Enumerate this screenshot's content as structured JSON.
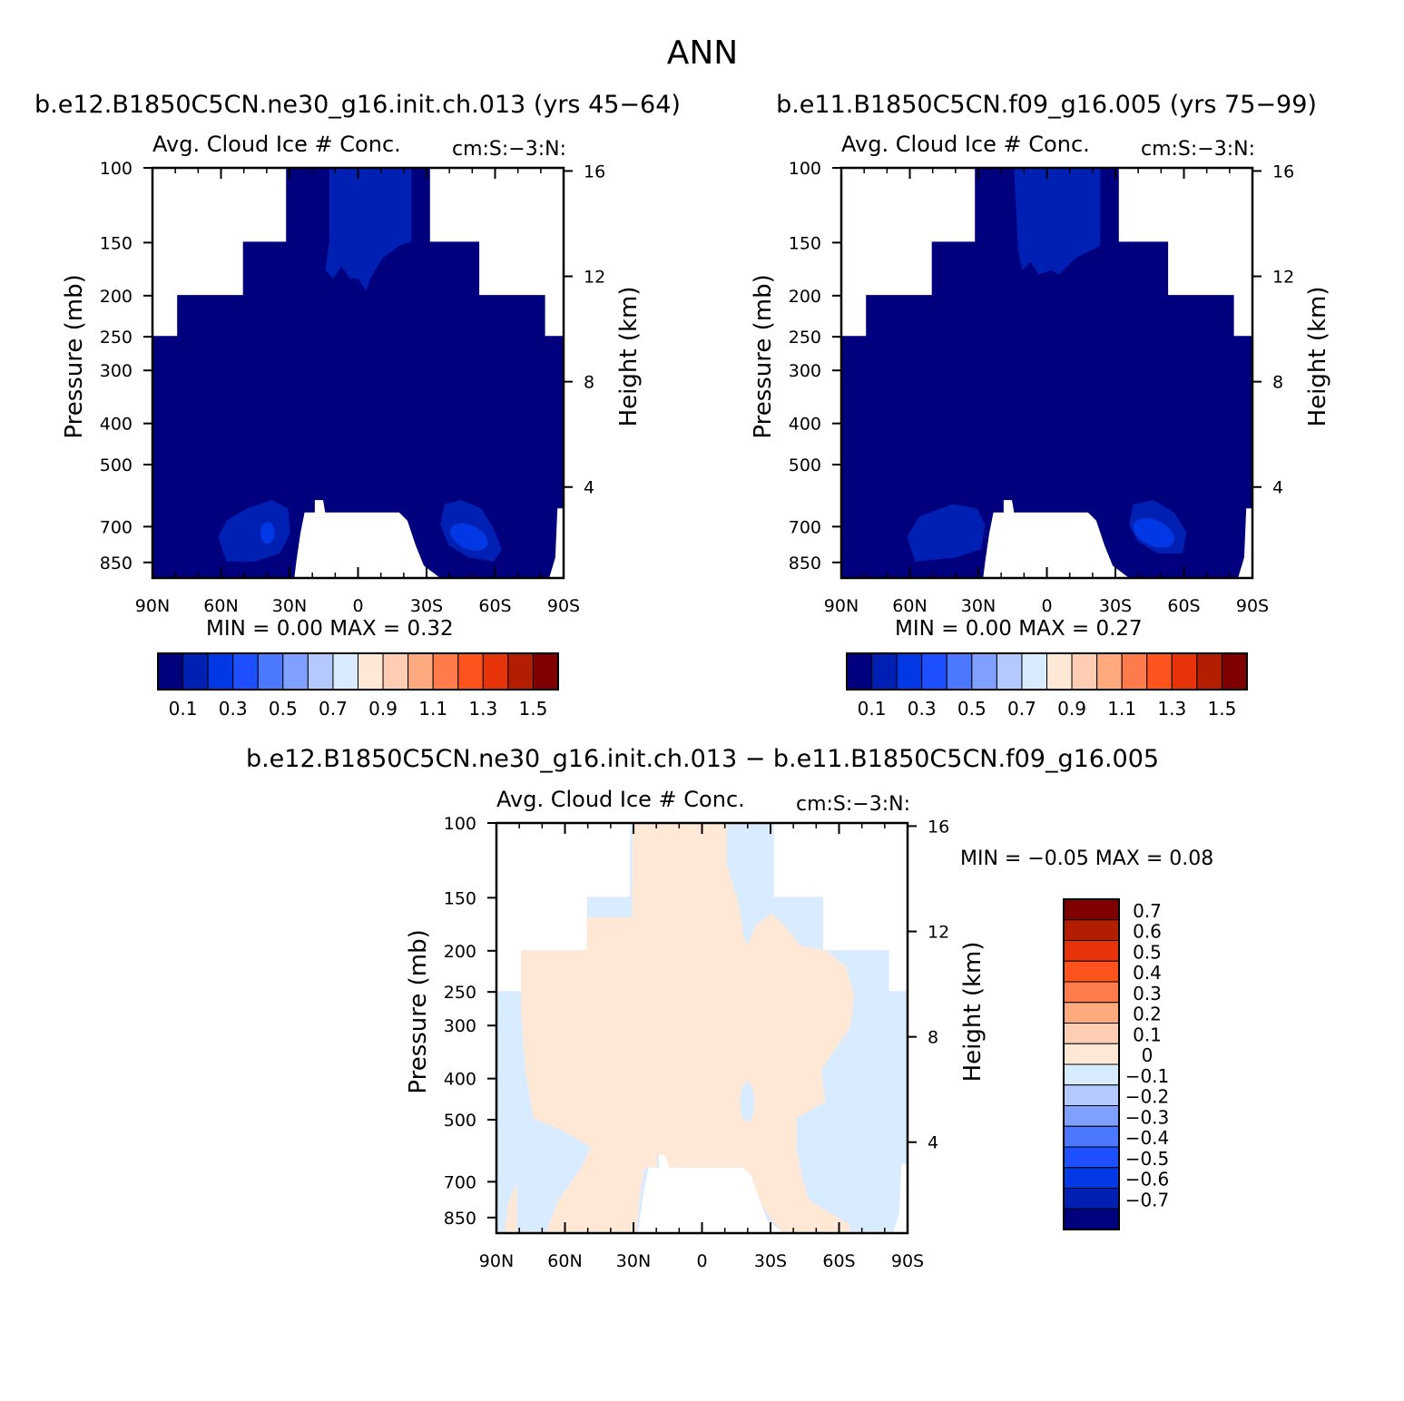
{
  "figure_title": "ANN",
  "colors": {
    "seq_palette": [
      "#00007f",
      "#0020b3",
      "#0038e6",
      "#1e50ff",
      "#4c78ff",
      "#7fa0ff",
      "#b3c9ff",
      "#d9ecff",
      "#ffe8d6",
      "#ffcdb3",
      "#ffa97f",
      "#ff7b4c",
      "#ff531e",
      "#e6330a",
      "#b31e00",
      "#7f0000"
    ],
    "diff_palette": [
      "#00007f",
      "#0020b3",
      "#0038e6",
      "#1e50ff",
      "#4c78ff",
      "#7fa0ff",
      "#b3c9ff",
      "#d9ecff",
      "#ffe8d6",
      "#ffcdb3",
      "#ffa97f",
      "#ff7b4c",
      "#ff531e",
      "#e6330a",
      "#b31e00",
      "#7f0000"
    ],
    "diff_pos_fill": "#ffe8d6",
    "diff_neg_fill": "#d9ecff",
    "bg_fill": "#00007f",
    "level1_fill": "#0020b3",
    "level2_fill": "#0038e6"
  },
  "chart_data": [
    {
      "type": "heatmap",
      "suptitle": "b.e12.B1850C5CN.ne30_g16.init.ch.013 (yrs 45−64)",
      "title": "Avg. Cloud Ice # Conc.",
      "units": "cm:S:−3:N:",
      "xlabel": "",
      "ylabel": "Pressure (mb)",
      "y2label": "Height (km)",
      "x_ticks": [
        "90N",
        "60N",
        "30N",
        "0",
        "30S",
        "60S",
        "90S"
      ],
      "y_ticks": [
        "100",
        "150",
        "200",
        "250",
        "300",
        "400",
        "500",
        "700",
        "850"
      ],
      "y2_ticks": [
        "16",
        "12",
        "8",
        "4"
      ],
      "stats_text": "MIN =     0.00  MAX =     0.32",
      "min": 0.0,
      "max": 0.32,
      "colorbar_labels": [
        "0.1",
        "0.3",
        "0.5",
        "0.7",
        "0.9",
        "1.1",
        "1.3",
        "1.5"
      ],
      "colorbar_levels": [
        0.1,
        0.2,
        0.3,
        0.4,
        0.5,
        0.6,
        0.7,
        0.8,
        0.9,
        1.0,
        1.1,
        1.2,
        1.3,
        1.4,
        1.5
      ]
    },
    {
      "type": "heatmap",
      "suptitle": "b.e11.B1850C5CN.f09_g16.005 (yrs 75−99)",
      "title": "Avg. Cloud Ice # Conc.",
      "units": "cm:S:−3:N:",
      "xlabel": "",
      "ylabel": "Pressure (mb)",
      "y2label": "Height (km)",
      "x_ticks": [
        "90N",
        "60N",
        "30N",
        "0",
        "30S",
        "60S",
        "90S"
      ],
      "y_ticks": [
        "100",
        "150",
        "200",
        "250",
        "300",
        "400",
        "500",
        "700",
        "850"
      ],
      "y2_ticks": [
        "16",
        "12",
        "8",
        "4"
      ],
      "stats_text": "MIN =     0.00  MAX =     0.27",
      "min": 0.0,
      "max": 0.27,
      "colorbar_labels": [
        "0.1",
        "0.3",
        "0.5",
        "0.7",
        "0.9",
        "1.1",
        "1.3",
        "1.5"
      ],
      "colorbar_levels": [
        0.1,
        0.2,
        0.3,
        0.4,
        0.5,
        0.6,
        0.7,
        0.8,
        0.9,
        1.0,
        1.1,
        1.2,
        1.3,
        1.4,
        1.5
      ]
    },
    {
      "type": "heatmap",
      "suptitle": "b.e12.B1850C5CN.ne30_g16.init.ch.013 − b.e11.B1850C5CN.f09_g16.005",
      "title": "Avg. Cloud Ice # Conc.",
      "units": "cm:S:−3:N:",
      "xlabel": "",
      "ylabel": "Pressure (mb)",
      "y2label": "Height (km)",
      "x_ticks": [
        "90N",
        "60N",
        "30N",
        "0",
        "30S",
        "60S",
        "90S"
      ],
      "y_ticks": [
        "100",
        "150",
        "200",
        "250",
        "300",
        "400",
        "500",
        "700",
        "850"
      ],
      "y2_ticks": [
        "16",
        "12",
        "8",
        "4"
      ],
      "stats_text": "MIN =   −0.05  MAX =     0.08",
      "min": -0.05,
      "max": 0.08,
      "colorbar_labels": [
        "0.7",
        "0.6",
        "0.5",
        "0.4",
        "0.3",
        "0.2",
        "0.1",
        "0",
        "−0.1",
        "−0.2",
        "−0.3",
        "−0.4",
        "−0.5",
        "−0.6",
        "−0.7"
      ],
      "colorbar_levels": [
        0.7,
        0.6,
        0.5,
        0.4,
        0.3,
        0.2,
        0.1,
        0,
        -0.1,
        -0.2,
        -0.3,
        -0.4,
        -0.5,
        -0.6,
        -0.7
      ]
    }
  ]
}
